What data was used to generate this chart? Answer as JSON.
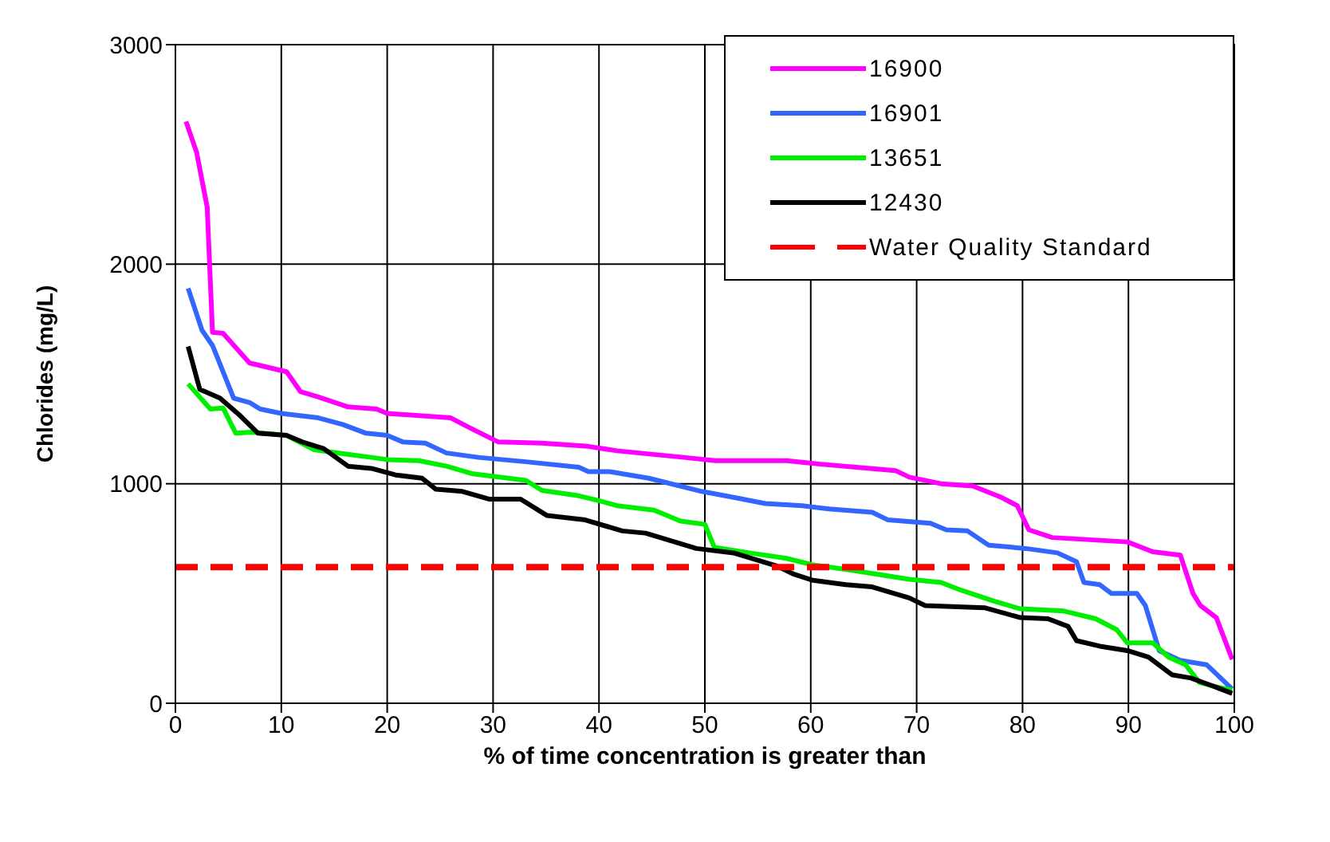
{
  "chart_data": {
    "type": "line",
    "xlabel": "% of time concentration is greater than",
    "ylabel": "Chlorides (mg/L)",
    "xlim": [
      0,
      100
    ],
    "xticks": [
      0,
      10,
      20,
      30,
      40,
      50,
      60,
      70,
      80,
      90,
      100
    ],
    "ylim": [
      0,
      3000
    ],
    "yticks": [
      0,
      1000,
      2000,
      3000
    ],
    "grid": true,
    "legend": "top right",
    "line_style": "solid",
    "marker": "none",
    "series": [
      {
        "name": "16900",
        "color": "#ff00ff",
        "x": [
          1,
          2,
          3,
          3.5,
          4.5,
          7,
          10.5,
          11.8,
          13.5,
          16.3,
          19,
          20,
          26,
          28,
          30.5,
          34.6,
          39,
          41.7,
          48,
          51,
          57.7,
          60.7,
          64.3,
          68,
          69.3,
          72.3,
          75.3,
          77.9,
          79.5,
          80.6,
          82.8,
          89.9,
          92.3,
          94.9,
          96.1,
          96.8,
          98.3,
          99.8
        ],
        "values": [
          2650,
          2510,
          2260,
          1690,
          1685,
          1550,
          1510,
          1420,
          1395,
          1350,
          1340,
          1320,
          1300,
          1250,
          1190,
          1185,
          1170,
          1150,
          1120,
          1105,
          1105,
          1090,
          1075,
          1060,
          1030,
          1000,
          990,
          940,
          900,
          790,
          755,
          735,
          690,
          675,
          500,
          445,
          390,
          200
        ]
      },
      {
        "name": "16901",
        "color": "#3366ff",
        "x": [
          1.2,
          2.5,
          3.5,
          5.5,
          7,
          8,
          10,
          13.5,
          15.8,
          18,
          20,
          21.5,
          23.6,
          25.6,
          28.6,
          33.1,
          38.1,
          39,
          41,
          44.7,
          49.7,
          53,
          55.7,
          59.2,
          61.7,
          65.8,
          67.3,
          71.3,
          72.8,
          74.8,
          76.8,
          80.3,
          83.3,
          85.1,
          85.8,
          87.3,
          88.4,
          90.8,
          91.6,
          92.9,
          94.9,
          97.4,
          99.8
        ],
        "values": [
          1890,
          1700,
          1630,
          1390,
          1370,
          1340,
          1320,
          1300,
          1270,
          1230,
          1220,
          1190,
          1185,
          1140,
          1120,
          1100,
          1075,
          1055,
          1055,
          1025,
          965,
          935,
          910,
          900,
          885,
          870,
          835,
          820,
          790,
          785,
          720,
          705,
          685,
          645,
          550,
          540,
          500,
          500,
          445,
          240,
          195,
          175,
          65
        ]
      },
      {
        "name": "13651",
        "color": "#00ee00",
        "x": [
          1.2,
          3.3,
          4.5,
          5.7,
          7.2,
          10.5,
          13.1,
          16.1,
          18.5,
          20,
          23,
          25.6,
          28.1,
          33.1,
          34.6,
          38.1,
          40.2,
          41.7,
          45.2,
          47.7,
          50,
          50.9,
          54.2,
          57.7,
          60.2,
          63.3,
          69.3,
          72.3,
          74.2,
          77.3,
          79.8,
          83.9,
          86.9,
          88.9,
          89.9,
          92.3,
          93.8,
          95.4,
          96.7,
          98.3,
          99.8
        ],
        "values": [
          1455,
          1340,
          1345,
          1230,
          1235,
          1220,
          1155,
          1135,
          1120,
          1110,
          1105,
          1080,
          1045,
          1015,
          970,
          945,
          920,
          900,
          880,
          830,
          815,
          710,
          685,
          660,
          630,
          610,
          565,
          550,
          515,
          465,
          430,
          420,
          385,
          335,
          275,
          275,
          210,
          175,
          95,
          75,
          60
        ]
      },
      {
        "name": "12430",
        "color": "#000000",
        "x": [
          1.2,
          2.3,
          4.2,
          6,
          7.8,
          10.5,
          12,
          14,
          16.3,
          18.5,
          20.8,
          23.3,
          24.6,
          27.1,
          29.6,
          32.6,
          35.1,
          38.7,
          42.2,
          44.4,
          49.2,
          52.7,
          56.8,
          58.3,
          60.2,
          63.3,
          65.8,
          69.3,
          70.8,
          76.4,
          79.8,
          82.4,
          84.3,
          85.1,
          87.3,
          89.9,
          91.9,
          94.1,
          95.9,
          97.9,
          99.8
        ],
        "values": [
          1625,
          1430,
          1390,
          1315,
          1230,
          1220,
          1190,
          1160,
          1080,
          1070,
          1040,
          1025,
          975,
          965,
          930,
          930,
          855,
          835,
          785,
          775,
          705,
          685,
          625,
          590,
          560,
          540,
          530,
          480,
          445,
          435,
          390,
          385,
          350,
          285,
          260,
          240,
          210,
          130,
          115,
          80,
          45
        ]
      }
    ],
    "ref_lines": [
      {
        "axis": "y",
        "value": 620,
        "label": "Water Quality Standard",
        "color": "#ff0000",
        "line_style": "dashed"
      }
    ]
  }
}
